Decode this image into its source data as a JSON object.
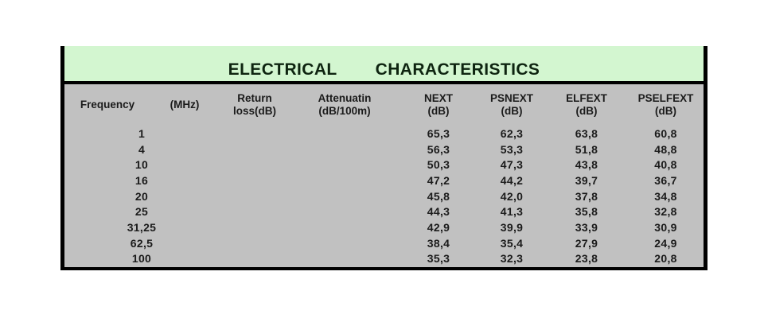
{
  "table": {
    "title_word1": "ELECTRICAL",
    "title_word2": "CHARACTERISTICS",
    "headers": {
      "frequency": "Frequency",
      "frequency_unit": "(MHz)",
      "return_loss_line1": "Return",
      "return_loss_line2": "loss(dB)",
      "attenuation_line1": "Attenuatin",
      "attenuation_line2": "(dB/100m)",
      "next_line1": "NEXT",
      "next_line2": "(dB)",
      "psnext_line1": "PSNEXT",
      "psnext_line2": "(dB)",
      "elfext_line1": "ELFEXT",
      "elfext_line2": "(dB)",
      "pselfext_line1": "PSELFEXT",
      "pselfext_line2": "(dB)"
    },
    "rows": [
      {
        "frequency": "1",
        "return_loss": "",
        "attenuation": "",
        "next": "65,3",
        "psnext": "62,3",
        "elfext": "63,8",
        "pselfext": "60,8"
      },
      {
        "frequency": "4",
        "return_loss": "",
        "attenuation": "",
        "next": "56,3",
        "psnext": "53,3",
        "elfext": "51,8",
        "pselfext": "48,8"
      },
      {
        "frequency": "10",
        "return_loss": "",
        "attenuation": "",
        "next": "50,3",
        "psnext": "47,3",
        "elfext": "43,8",
        "pselfext": "40,8"
      },
      {
        "frequency": "16",
        "return_loss": "",
        "attenuation": "",
        "next": "47,2",
        "psnext": "44,2",
        "elfext": "39,7",
        "pselfext": "36,7"
      },
      {
        "frequency": "20",
        "return_loss": "",
        "attenuation": "",
        "next": "45,8",
        "psnext": "42,0",
        "elfext": "37,8",
        "pselfext": "34,8"
      },
      {
        "frequency": "25",
        "return_loss": "",
        "attenuation": "",
        "next": "44,3",
        "psnext": "41,3",
        "elfext": "35,8",
        "pselfext": "32,8"
      },
      {
        "frequency": "31,25",
        "return_loss": "",
        "attenuation": "",
        "next": "42,9",
        "psnext": "39,9",
        "elfext": "33,9",
        "pselfext": "30,9"
      },
      {
        "frequency": "62,5",
        "return_loss": "",
        "attenuation": "",
        "next": "38,4",
        "psnext": "35,4",
        "elfext": "27,9",
        "pselfext": "24,9"
      },
      {
        "frequency": "100",
        "return_loss": "",
        "attenuation": "",
        "next": "35,3",
        "psnext": "32,3",
        "elfext": "23,8",
        "pselfext": "20,8"
      }
    ]
  },
  "colors": {
    "banner_green": "#d3f6d0",
    "body_gray": "#c1c1c1",
    "border_black": "#000000"
  }
}
